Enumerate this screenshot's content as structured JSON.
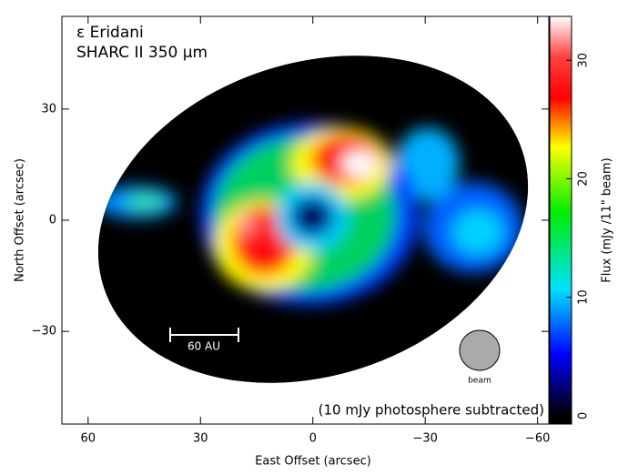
{
  "chart_data": {
    "type": "image",
    "title": "ε Eridani",
    "subtitle": "SHARC II 350 μm",
    "annotations": [
      "(10 mJy photosphere subtracted)",
      "60 AU",
      "beam"
    ],
    "xlabel": "East Offset (arcsec)",
    "ylabel": "North Offset (arcsec)",
    "xlim": [
      67,
      -63
    ],
    "xticks": [
      60,
      30,
      0,
      {
        "value": -30,
        "label": "−30"
      },
      {
        "value": -60,
        "label": "−60"
      }
    ],
    "ylim": [
      -55,
      55
    ],
    "yticks": [
      {
        "value": -30,
        "label": "−30"
      },
      0,
      30
    ],
    "colorbar": {
      "label": "Flux (mJy /11\" beam)",
      "lim": [
        -0.7,
        33.7
      ],
      "ticks": [
        0,
        10,
        20,
        30
      ]
    }
  }
}
